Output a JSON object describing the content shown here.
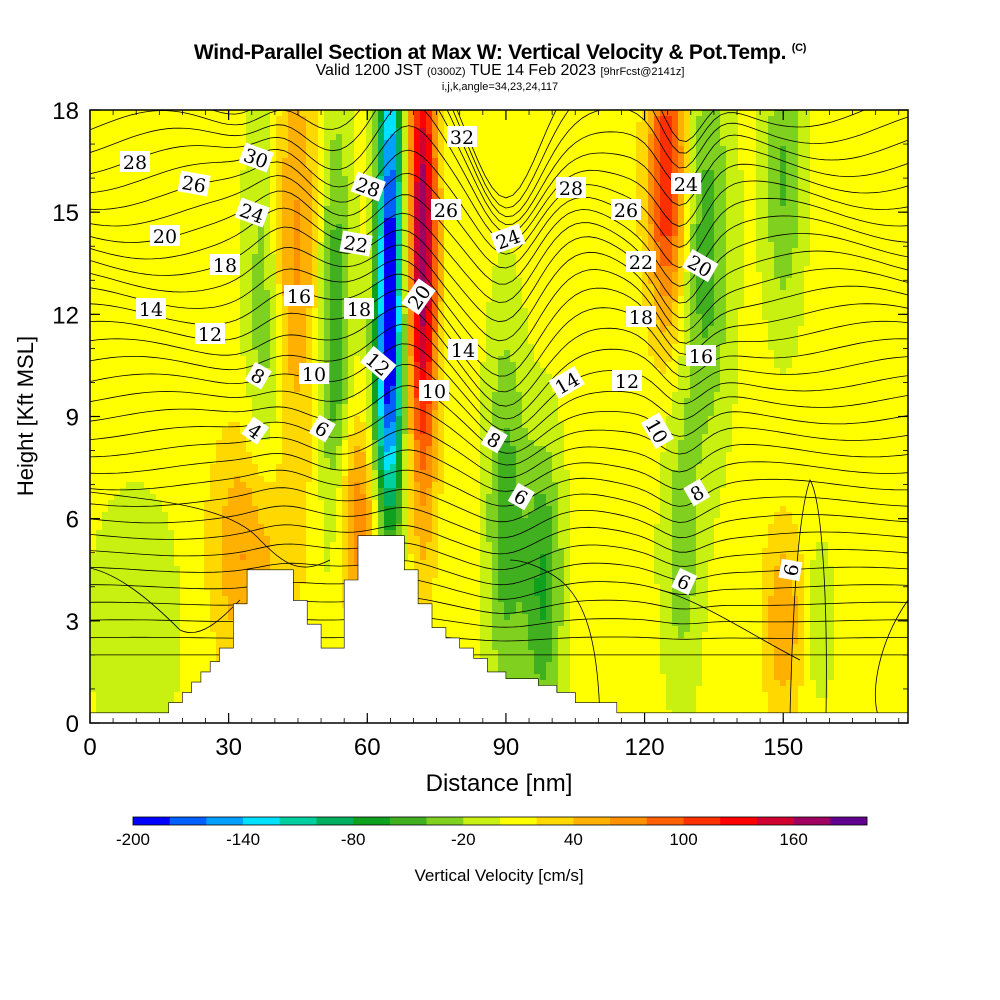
{
  "chart_data": {
    "type": "heatmap",
    "title": "Wind-Parallel Section at Max W: Vertical Velocity & Pot.Temp.",
    "title_mark": "(C)",
    "subtitle_valid": "Valid 1200 JST",
    "subtitle_zulu": "(0300Z)",
    "subtitle_date": "TUE 14 Feb 2023",
    "subtitle_fcst": "[9hrFcst@2141z]",
    "subtitle_indices": "i,j,k,angle=34,23,24,117",
    "xlabel": "Distance [nm]",
    "ylabel": "Height [Kft MSL]",
    "xlim": [
      0,
      177
    ],
    "ylim": [
      0,
      18
    ],
    "x_ticks": [
      "0",
      "30",
      "60",
      "90",
      "120",
      "150"
    ],
    "y_ticks": [
      "0",
      "3",
      "6",
      "9",
      "12",
      "15",
      "18"
    ],
    "colorbar": {
      "label": "Vertical Velocity [cm/s]",
      "tick_labels": [
        "-200",
        "-140",
        "-80",
        "-20",
        "40",
        "100",
        "160"
      ],
      "colors": [
        "#0000ff",
        "#0060ff",
        "#00a0ff",
        "#00e0ff",
        "#00d0a0",
        "#00b060",
        "#10a020",
        "#40b020",
        "#80d020",
        "#c8f010",
        "#ffff00",
        "#ffd800",
        "#ffb000",
        "#ff9000",
        "#ff6000",
        "#ff3000",
        "#ff0000",
        "#d00030",
        "#a00060",
        "#600090"
      ]
    },
    "pot_temp_contour_labels": [
      "28",
      "30",
      "26",
      "24",
      "20",
      "18",
      "14",
      "12",
      "8",
      "4",
      "10",
      "6",
      "28",
      "22",
      "16",
      "18",
      "12",
      "32",
      "26",
      "20",
      "24",
      "14",
      "10",
      "8",
      "6",
      "28",
      "26",
      "22",
      "18",
      "12",
      "14",
      "24",
      "20",
      "16",
      "10",
      "8",
      "6",
      "6"
    ]
  }
}
